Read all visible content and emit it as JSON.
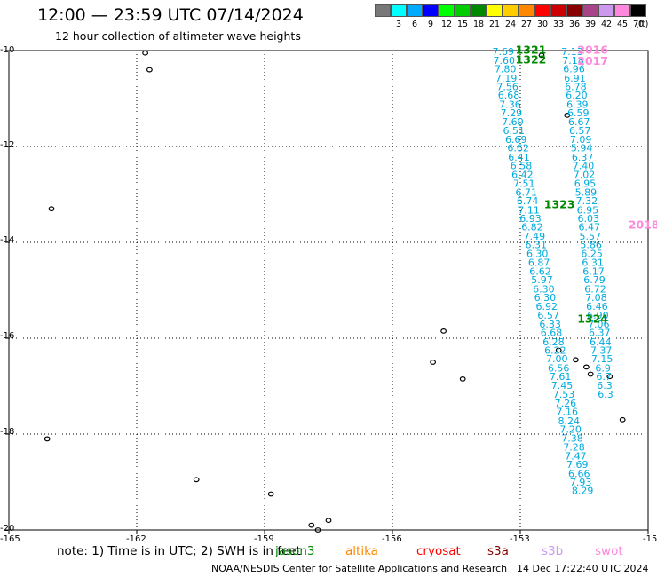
{
  "header": {
    "title": "12:00 — 23:59 UTC 07/14/2024",
    "subtitle": "12 hour collection of altimeter wave heights"
  },
  "color_scale": {
    "unit": "(ft)",
    "bins": [
      {
        "label": "3",
        "color": "#787878"
      },
      {
        "label": "6",
        "color": "#00ffff"
      },
      {
        "label": "9",
        "color": "#00aaff"
      },
      {
        "label": "12",
        "color": "#0000ff"
      },
      {
        "label": "15",
        "color": "#00ff00"
      },
      {
        "label": "18",
        "color": "#00cc00"
      },
      {
        "label": "21",
        "color": "#008800"
      },
      {
        "label": "24",
        "color": "#ffff00"
      },
      {
        "label": "27",
        "color": "#ffcc00"
      },
      {
        "label": "30",
        "color": "#ff8800"
      },
      {
        "label": "33",
        "color": "#ff0000"
      },
      {
        "label": "36",
        "color": "#cc0000"
      },
      {
        "label": "39",
        "color": "#880000"
      },
      {
        "label": "42",
        "color": "#aa4488"
      },
      {
        "label": "45",
        "color": "#cc99ee"
      },
      {
        "label": "70",
        "color": "#ff88dd"
      },
      {
        "label": "",
        "color": "#000000"
      }
    ]
  },
  "axes": {
    "lat_labels": [
      "-10",
      "-12",
      "-14",
      "-16",
      "-18",
      "-20"
    ],
    "lon_labels": [
      "-165",
      "-162",
      "-159",
      "-156",
      "-153",
      "-15"
    ]
  },
  "chart_data": {
    "type": "scatter",
    "title": "12 hour collection of altimeter wave heights",
    "xlabel": "",
    "ylabel": "",
    "xlim": [
      -165,
      -150
    ],
    "ylim": [
      -20,
      -10
    ],
    "unit": "ft",
    "tracks": [
      {
        "color": "#00aadd",
        "labels": [
          {
            "lon": -153.4,
            "lat": -10.02,
            "v": "7.69"
          },
          {
            "lon": -153.38,
            "lat": -10.2,
            "v": "7.60"
          },
          {
            "lon": -153.35,
            "lat": -10.38,
            "v": "7.80"
          },
          {
            "lon": -153.33,
            "lat": -10.57,
            "v": "7.19"
          },
          {
            "lon": -153.3,
            "lat": -10.75,
            "v": "7.56"
          },
          {
            "lon": -153.27,
            "lat": -10.93,
            "v": "6.68"
          },
          {
            "lon": -153.24,
            "lat": -11.12,
            "v": "7.36"
          },
          {
            "lon": -153.21,
            "lat": -11.3,
            "v": "7.29"
          },
          {
            "lon": -153.18,
            "lat": -11.48,
            "v": "7.60"
          },
          {
            "lon": -153.15,
            "lat": -11.67,
            "v": "6.51"
          },
          {
            "lon": -153.1,
            "lat": -11.85,
            "v": "6.69"
          },
          {
            "lon": -153.05,
            "lat": -12.03,
            "v": "6.62"
          },
          {
            "lon": -153.03,
            "lat": -12.22,
            "v": "6.41"
          },
          {
            "lon": -152.98,
            "lat": -12.4,
            "v": "6.58"
          },
          {
            "lon": -152.95,
            "lat": -12.58,
            "v": "6.42"
          },
          {
            "lon": -152.91,
            "lat": -12.77,
            "v": "7.51"
          },
          {
            "lon": -152.86,
            "lat": -12.95,
            "v": "6.71"
          },
          {
            "lon": -152.83,
            "lat": -13.13,
            "v": "6.74"
          },
          {
            "lon": -152.8,
            "lat": -13.32,
            "v": "7.11"
          },
          {
            "lon": -152.76,
            "lat": -13.5,
            "v": "6.93"
          },
          {
            "lon": -152.72,
            "lat": -13.68,
            "v": "6.82"
          },
          {
            "lon": -152.67,
            "lat": -13.87,
            "v": "7.49"
          },
          {
            "lon": -152.63,
            "lat": -14.05,
            "v": "6.31"
          },
          {
            "lon": -152.6,
            "lat": -14.23,
            "v": "6.30"
          },
          {
            "lon": -152.56,
            "lat": -14.42,
            "v": "6.87"
          },
          {
            "lon": -152.53,
            "lat": -14.6,
            "v": "6.62"
          },
          {
            "lon": -152.49,
            "lat": -14.78,
            "v": "5.97"
          },
          {
            "lon": -152.45,
            "lat": -14.97,
            "v": "6.30"
          },
          {
            "lon": -152.42,
            "lat": -15.15,
            "v": "6.30"
          },
          {
            "lon": -152.38,
            "lat": -15.33,
            "v": "6.92"
          },
          {
            "lon": -152.34,
            "lat": -15.52,
            "v": "6.57"
          },
          {
            "lon": -152.3,
            "lat": -15.7,
            "v": "6.33"
          },
          {
            "lon": -152.27,
            "lat": -15.88,
            "v": "6.68"
          },
          {
            "lon": -152.22,
            "lat": -16.07,
            "v": "6.28"
          },
          {
            "lon": -152.18,
            "lat": -16.25,
            "v": "6.22"
          },
          {
            "lon": -152.14,
            "lat": -16.43,
            "v": "7.00"
          },
          {
            "lon": -152.1,
            "lat": -16.62,
            "v": "6.56"
          },
          {
            "lon": -152.06,
            "lat": -16.8,
            "v": "7.61"
          },
          {
            "lon": -152.02,
            "lat": -16.98,
            "v": "7.45"
          },
          {
            "lon": -151.98,
            "lat": -17.17,
            "v": "7.53"
          },
          {
            "lon": -151.94,
            "lat": -17.35,
            "v": "7.26"
          },
          {
            "lon": -151.9,
            "lat": -17.53,
            "v": "7.16"
          },
          {
            "lon": -151.86,
            "lat": -17.72,
            "v": "8.24"
          },
          {
            "lon": -151.82,
            "lat": -17.9,
            "v": "7.20"
          },
          {
            "lon": -151.78,
            "lat": -18.08,
            "v": "7.38"
          },
          {
            "lon": -151.74,
            "lat": -18.27,
            "v": "7.28"
          },
          {
            "lon": -151.7,
            "lat": -18.45,
            "v": "7.47"
          },
          {
            "lon": -151.66,
            "lat": -18.63,
            "v": "7.69"
          },
          {
            "lon": -151.62,
            "lat": -18.82,
            "v": "6.66"
          },
          {
            "lon": -151.58,
            "lat": -19.0,
            "v": "7.93"
          },
          {
            "lon": -151.54,
            "lat": -19.18,
            "v": "8.29"
          }
        ]
      },
      {
        "color": "#00aadd",
        "labels": [
          {
            "lon": -151.78,
            "lat": -10.02,
            "v": "7.13"
          },
          {
            "lon": -151.76,
            "lat": -10.2,
            "v": "7.18"
          },
          {
            "lon": -151.74,
            "lat": -10.38,
            "v": "6.96"
          },
          {
            "lon": -151.72,
            "lat": -10.57,
            "v": "6.91"
          },
          {
            "lon": -151.7,
            "lat": -10.75,
            "v": "6.78"
          },
          {
            "lon": -151.68,
            "lat": -10.93,
            "v": "6.20"
          },
          {
            "lon": -151.66,
            "lat": -11.12,
            "v": "6.39"
          },
          {
            "lon": -151.64,
            "lat": -11.3,
            "v": "6.59"
          },
          {
            "lon": -151.62,
            "lat": -11.48,
            "v": "6.67"
          },
          {
            "lon": -151.6,
            "lat": -11.67,
            "v": "6.57"
          },
          {
            "lon": -151.58,
            "lat": -11.85,
            "v": "7.09"
          },
          {
            "lon": -151.56,
            "lat": -12.03,
            "v": "5.94"
          },
          {
            "lon": -151.54,
            "lat": -12.22,
            "v": "6.37"
          },
          {
            "lon": -151.52,
            "lat": -12.4,
            "v": "7.40"
          },
          {
            "lon": -151.5,
            "lat": -12.58,
            "v": "7.02"
          },
          {
            "lon": -151.48,
            "lat": -12.77,
            "v": "6.95"
          },
          {
            "lon": -151.46,
            "lat": -12.95,
            "v": "5.89"
          },
          {
            "lon": -151.44,
            "lat": -13.13,
            "v": "7.32"
          },
          {
            "lon": -151.42,
            "lat": -13.32,
            "v": "6.95"
          },
          {
            "lon": -151.4,
            "lat": -13.5,
            "v": "6.03"
          },
          {
            "lon": -151.38,
            "lat": -13.68,
            "v": "6.47"
          },
          {
            "lon": -151.36,
            "lat": -13.87,
            "v": "5.57"
          },
          {
            "lon": -151.34,
            "lat": -14.05,
            "v": "5.86"
          },
          {
            "lon": -151.32,
            "lat": -14.23,
            "v": "6.25"
          },
          {
            "lon": -151.3,
            "lat": -14.42,
            "v": "6.31"
          },
          {
            "lon": -151.28,
            "lat": -14.6,
            "v": "6.17"
          },
          {
            "lon": -151.26,
            "lat": -14.78,
            "v": "6.79"
          },
          {
            "lon": -151.24,
            "lat": -14.97,
            "v": "6.72"
          },
          {
            "lon": -151.22,
            "lat": -15.15,
            "v": "7.08"
          },
          {
            "lon": -151.2,
            "lat": -15.33,
            "v": "6.46"
          },
          {
            "lon": -151.18,
            "lat": -15.52,
            "v": "6.90"
          },
          {
            "lon": -151.16,
            "lat": -15.7,
            "v": "7.06"
          },
          {
            "lon": -151.14,
            "lat": -15.88,
            "v": "6.37"
          },
          {
            "lon": -151.12,
            "lat": -16.07,
            "v": "6.44"
          },
          {
            "lon": -151.1,
            "lat": -16.25,
            "v": "7.37"
          },
          {
            "lon": -151.08,
            "lat": -16.43,
            "v": "7.15"
          },
          {
            "lon": -151.06,
            "lat": -16.62,
            "v": "6.9"
          },
          {
            "lon": -151.04,
            "lat": -16.8,
            "v": "6.7"
          },
          {
            "lon": -151.02,
            "lat": -16.98,
            "v": "6.3"
          },
          {
            "lon": -151.0,
            "lat": -17.17,
            "v": "6.3"
          }
        ]
      }
    ],
    "track_ids": [
      {
        "lon": -152.75,
        "lat": -9.97,
        "id": "1321",
        "color": "#008800"
      },
      {
        "lon": -152.75,
        "lat": -10.18,
        "id": "1322",
        "color": "#008800"
      },
      {
        "lon": -152.08,
        "lat": -13.19,
        "id": "1323",
        "color": "#008800"
      },
      {
        "lon": -151.3,
        "lat": -15.58,
        "id": "1324",
        "color": "#008800"
      },
      {
        "lon": -151.3,
        "lat": -9.97,
        "id": "2016",
        "color": "#ff88dd"
      },
      {
        "lon": -151.3,
        "lat": -10.2,
        "id": "2017",
        "color": "#ff88dd"
      },
      {
        "lon": -150.1,
        "lat": -13.62,
        "id": "2018",
        "color": "#ff88dd"
      }
    ]
  },
  "note": "note: 1) Time is in UTC; 2) SWH is in feet",
  "satellites": [
    {
      "name": "jason3",
      "color": "#008800"
    },
    {
      "name": "altika",
      "color": "#ff8800"
    },
    {
      "name": "cryosat",
      "color": "#ff0000"
    },
    {
      "name": "s3a",
      "color": "#880000"
    },
    {
      "name": "s3b",
      "color": "#cc99ee"
    },
    {
      "name": "swot",
      "color": "#ff88dd"
    }
  ],
  "footer": {
    "credit": "NOAA/NESDIS Center for Satellite Applications and Research",
    "date": "14 Dec 17:22:40 UTC 2024"
  }
}
